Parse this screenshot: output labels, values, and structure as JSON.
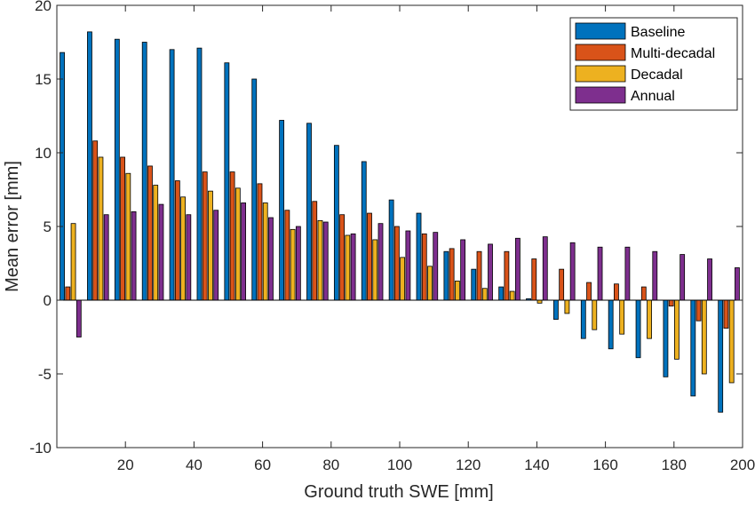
{
  "chart_data": {
    "type": "bar",
    "xlabel": "Ground truth SWE [mm]",
    "ylabel": "Mean error [mm]",
    "xlim": [
      0,
      200
    ],
    "ylim": [
      -10,
      20
    ],
    "xticks": [
      20,
      40,
      60,
      80,
      100,
      120,
      140,
      160,
      180,
      200
    ],
    "yticks": [
      -10,
      -5,
      0,
      5,
      10,
      15,
      20
    ],
    "bin_centers": [
      4,
      12,
      20,
      28,
      36,
      44,
      52,
      60,
      68,
      76,
      84,
      92,
      100,
      108,
      116,
      124,
      132,
      140,
      148,
      156,
      164,
      172,
      180,
      188,
      196
    ],
    "legend_position": "top-right",
    "grid": false,
    "series": [
      {
        "name": "Baseline",
        "color": "#0072BD",
        "values": [
          16.8,
          18.2,
          17.7,
          17.5,
          17.0,
          17.1,
          16.1,
          15.0,
          12.2,
          12.0,
          10.5,
          9.4,
          6.8,
          5.9,
          3.3,
          2.1,
          0.9,
          0.1,
          -1.3,
          -2.6,
          -3.3,
          -3.9,
          -5.2,
          -6.5,
          -7.6
        ]
      },
      {
        "name": "Multi-decadal",
        "color": "#D95319",
        "values": [
          0.9,
          10.8,
          9.7,
          9.1,
          8.1,
          8.7,
          8.7,
          7.9,
          6.1,
          6.7,
          5.8,
          5.9,
          5.0,
          4.5,
          3.5,
          3.3,
          3.3,
          2.8,
          2.1,
          1.2,
          1.1,
          0.9,
          -0.4,
          -1.4,
          -1.9
        ]
      },
      {
        "name": "Decadal",
        "color": "#EDB120",
        "values": [
          5.2,
          9.7,
          8.6,
          7.8,
          7.0,
          7.4,
          7.6,
          6.6,
          4.8,
          5.4,
          4.4,
          4.1,
          2.9,
          2.3,
          1.3,
          0.8,
          0.6,
          -0.2,
          -0.9,
          -2.0,
          -2.3,
          -2.6,
          -4.0,
          -5.0,
          -5.6
        ]
      },
      {
        "name": "Annual",
        "color": "#7E2F8E",
        "values": [
          -2.5,
          5.8,
          6.0,
          6.5,
          5.8,
          6.1,
          6.6,
          5.6,
          5.0,
          5.3,
          4.5,
          5.2,
          4.7,
          4.6,
          4.1,
          3.8,
          4.2,
          4.3,
          3.9,
          3.6,
          3.6,
          3.3,
          3.1,
          2.8,
          2.2
        ]
      }
    ]
  }
}
